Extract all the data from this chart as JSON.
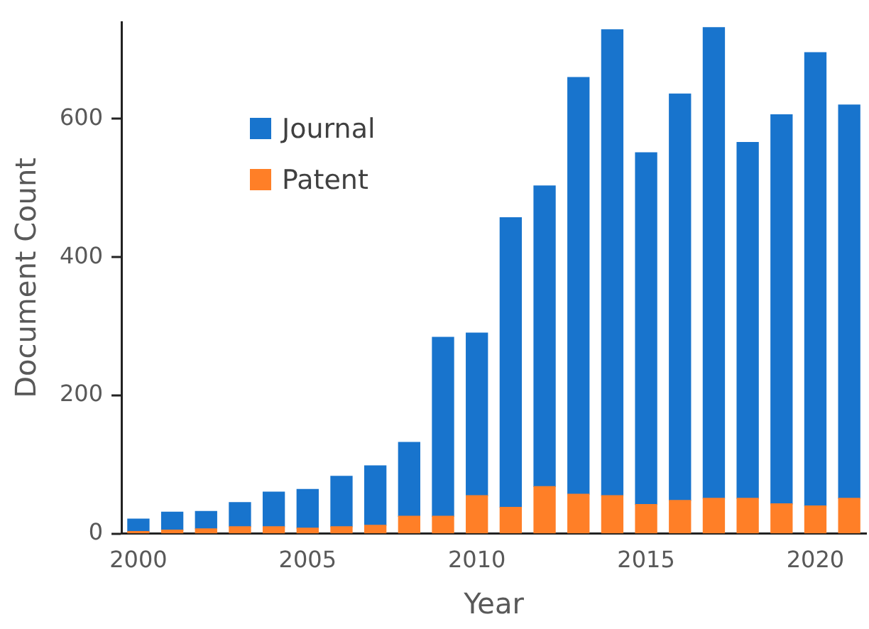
{
  "chart_data": {
    "type": "bar",
    "stacked": true,
    "xlabel": "Year",
    "ylabel": "Document Count",
    "x": [
      2000,
      2001,
      2002,
      2003,
      2004,
      2005,
      2006,
      2007,
      2008,
      2009,
      2010,
      2011,
      2012,
      2013,
      2014,
      2015,
      2016,
      2017,
      2018,
      2019,
      2020,
      2021
    ],
    "series": [
      {
        "name": "Patent",
        "color": "#ff7f27",
        "values": [
          3,
          5,
          7,
          10,
          10,
          8,
          10,
          12,
          25,
          25,
          55,
          38,
          68,
          57,
          55,
          42,
          48,
          51,
          51,
          43,
          40,
          51
        ]
      },
      {
        "name": "Journal",
        "color": "#1874cd",
        "values": [
          18,
          26,
          25,
          35,
          50,
          56,
          73,
          86,
          107,
          259,
          235,
          419,
          435,
          603,
          674,
          509,
          588,
          681,
          515,
          563,
          656,
          569
        ]
      }
    ],
    "xlim": [
      1999.5,
      2021.5
    ],
    "xticks": [
      2000,
      2005,
      2010,
      2015,
      2020
    ],
    "ylim": [
      0,
      740
    ],
    "yticks": [
      0,
      200,
      400,
      600
    ],
    "grid": false,
    "legend": "top left"
  }
}
